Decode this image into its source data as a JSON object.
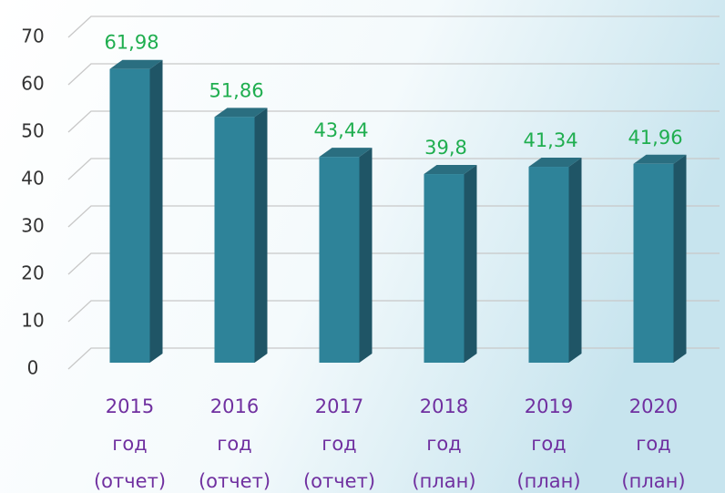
{
  "chart_data": {
    "type": "bar3d",
    "categories": [
      [
        "2015",
        "год",
        "(отчет)"
      ],
      [
        "2016",
        "год",
        "(отчет)"
      ],
      [
        "2017",
        "год",
        "(отчет)"
      ],
      [
        "2018",
        "год",
        "(план)"
      ],
      [
        "2019",
        "год",
        "(план)"
      ],
      [
        "2020",
        "год",
        "(план)"
      ]
    ],
    "values": [
      61.98,
      51.86,
      43.44,
      39.8,
      41.34,
      41.96
    ],
    "value_labels": [
      "61,98",
      "51,86",
      "43,44",
      "39,8",
      "41,34",
      "41,96"
    ],
    "color": "#2e8399",
    "ylim": [
      0,
      70
    ],
    "yticks": [
      0,
      10,
      20,
      30,
      40,
      50,
      60,
      70
    ],
    "grid": true
  }
}
